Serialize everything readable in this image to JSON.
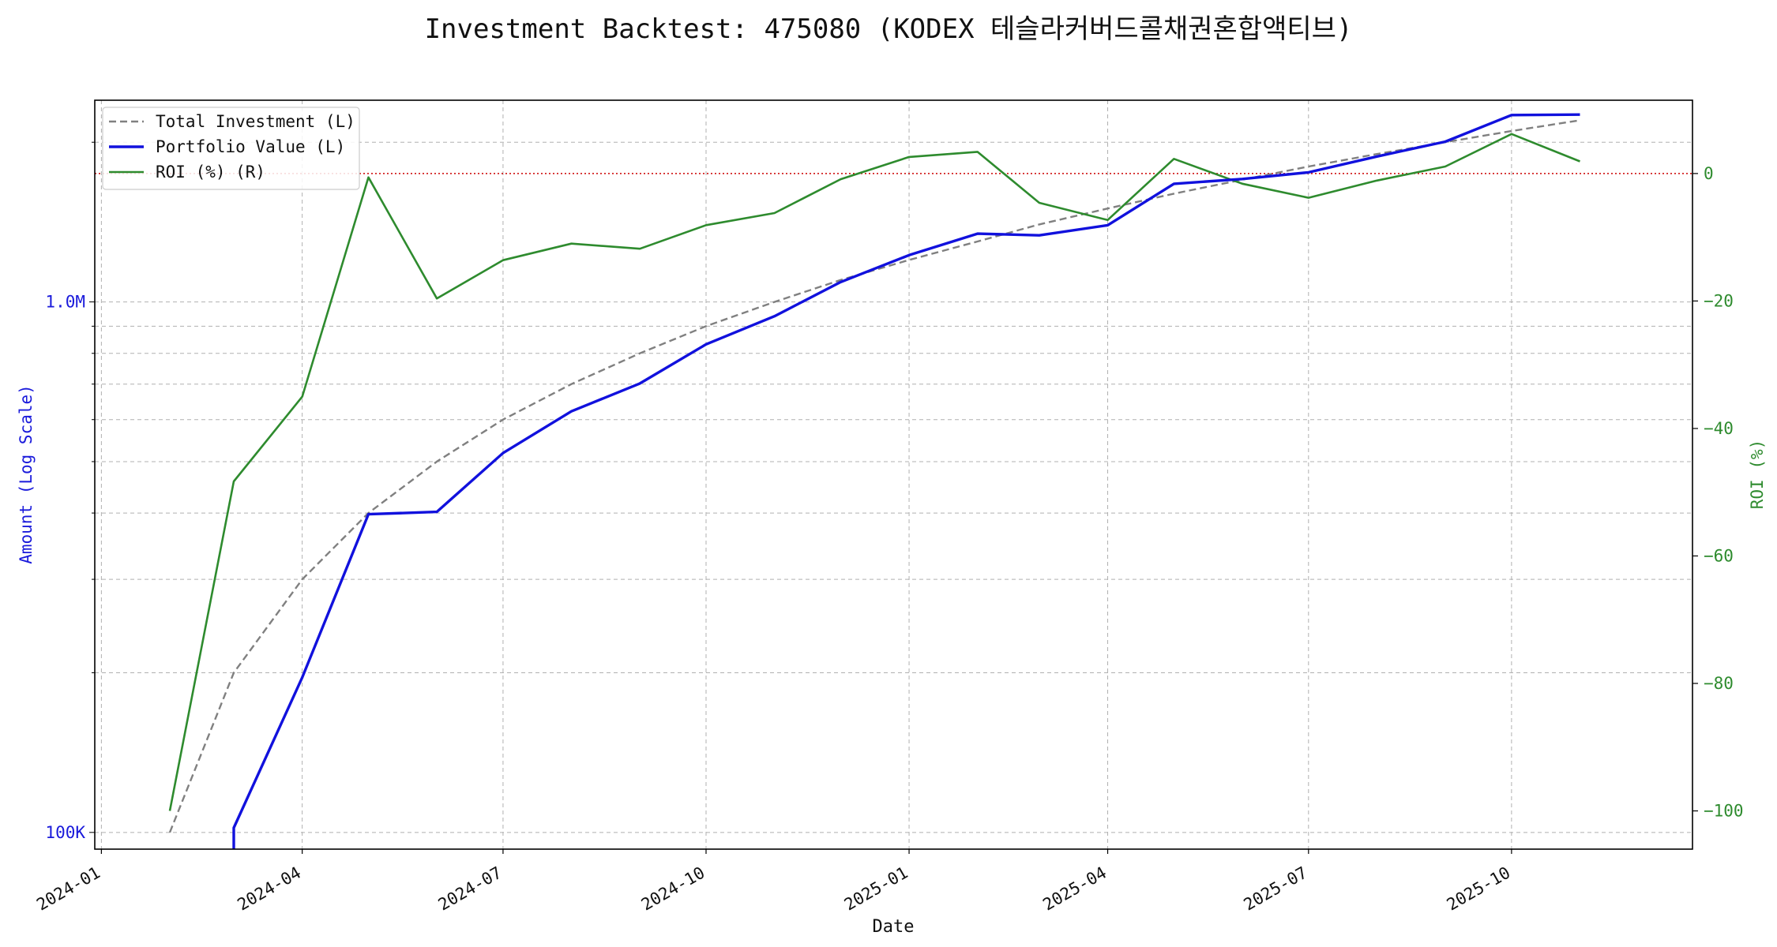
{
  "chart_data": {
    "type": "line",
    "title": "Investment Backtest: 475080 (KODEX 테슬라커버드콜채권혼합액티브)",
    "xlabel": "Date",
    "ylabel_left": "Amount (Log Scale)",
    "ylabel_right": "ROI (%)",
    "y_left_scale": "log",
    "y_left_lim": [
      93000,
      2400000
    ],
    "y_right_lim": [
      -106,
      11.5
    ],
    "x_lim": [
      "2023-12-29",
      "2025-12-22"
    ],
    "grid": true,
    "legend_position": "top-left",
    "x_ticks": [
      "2024-01",
      "2024-04",
      "2024-07",
      "2024-10",
      "2025-01",
      "2025-04",
      "2025-07",
      "2025-10"
    ],
    "x_tick_dates": [
      "2024-01-01",
      "2024-04-01",
      "2024-07-01",
      "2024-10-01",
      "2025-01-01",
      "2025-04-01",
      "2025-07-01",
      "2025-10-01"
    ],
    "y_left_ticks": [
      {
        "value": 100000,
        "label": "100K"
      },
      {
        "value": 1000000,
        "label": "1.0M"
      }
    ],
    "y_right_ticks": [
      {
        "value": 0,
        "label": "0"
      },
      {
        "value": -20,
        "label": "−20"
      },
      {
        "value": -40,
        "label": "−40"
      },
      {
        "value": -60,
        "label": "−60"
      },
      {
        "value": -80,
        "label": "−80"
      },
      {
        "value": -100,
        "label": "−100"
      }
    ],
    "reference_line": {
      "axis": "right",
      "value": 0,
      "color": "#cc0000",
      "style": "dotted"
    },
    "x": [
      "2024-02-01",
      "2024-03-01",
      "2024-04-01",
      "2024-05-01",
      "2024-06-01",
      "2024-07-01",
      "2024-08-01",
      "2024-09-01",
      "2024-10-01",
      "2024-11-01",
      "2024-12-01",
      "2025-01-01",
      "2025-02-01",
      "2025-03-01",
      "2025-04-01",
      "2025-05-01",
      "2025-06-01",
      "2025-07-01",
      "2025-08-01",
      "2025-09-01",
      "2025-10-01",
      "2025-11-01"
    ],
    "series": [
      {
        "name": "Total Investment (L)",
        "axis": "left",
        "color": "#808080",
        "style": "dashed",
        "values": [
          100000,
          200000,
          300000,
          400000,
          500000,
          600000,
          700000,
          800000,
          900000,
          1000000,
          1100000,
          1200000,
          1300000,
          1400000,
          1500000,
          1600000,
          1700000,
          1800000,
          1900000,
          2000000,
          2100000,
          2200000
        ]
      },
      {
        "name": "Portfolio Value (L)",
        "axis": "left",
        "color": "#1111dd",
        "style": "solid",
        "values": [
          null,
          102000,
          196000,
          398000,
          402000,
          519000,
          622000,
          702000,
          832000,
          940000,
          1090000,
          1225000,
          1345000,
          1335000,
          1395000,
          1670000,
          1705000,
          1755000,
          1880000,
          2005000,
          2250000,
          2255000
        ]
      },
      {
        "name": "ROI (%) (R)",
        "axis": "right",
        "color": "#2e8b2e",
        "style": "solid",
        "values": [
          -100,
          -48.3,
          -35,
          -0.6,
          -19.6,
          -13.6,
          -11,
          -11.8,
          -8.1,
          -6.2,
          -0.9,
          2.6,
          3.4,
          -4.6,
          -7.3,
          2.3,
          -1.6,
          -3.8,
          -1.1,
          1.1,
          6.2,
          1.9
        ]
      }
    ]
  }
}
